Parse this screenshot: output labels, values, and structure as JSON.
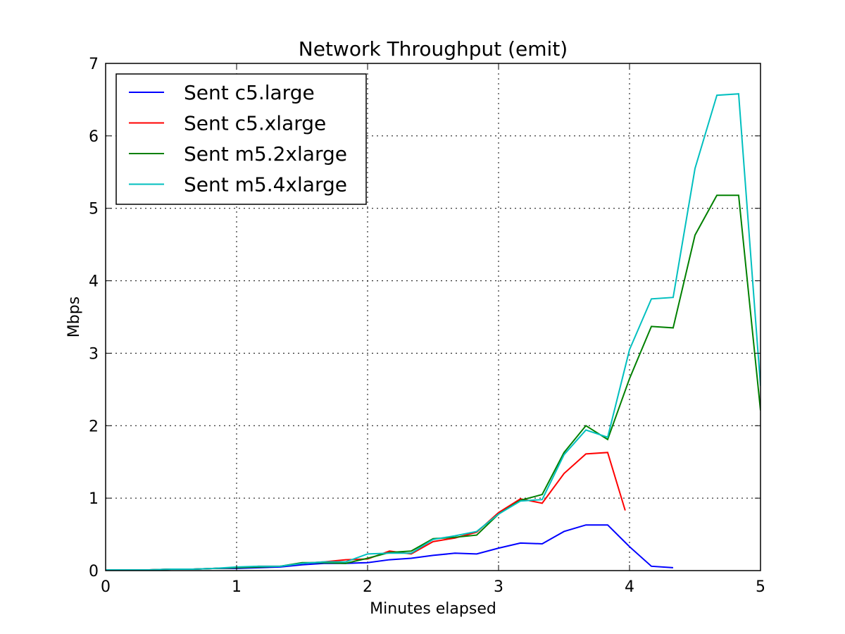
{
  "chart_data": {
    "type": "line",
    "title": "Network Throughput (emit)",
    "xlabel": "Minutes elapsed",
    "ylabel": "Mbps",
    "xlim": [
      0,
      5
    ],
    "ylim": [
      0,
      7
    ],
    "xticks": [
      0,
      1,
      2,
      3,
      4,
      5
    ],
    "yticks": [
      0,
      1,
      2,
      3,
      4,
      5,
      6,
      7
    ],
    "grid": true,
    "legend_position": "top-left",
    "series": [
      {
        "name": "Sent c5.large",
        "color": "#0000ff",
        "x": [
          0,
          0.167,
          0.333,
          0.5,
          0.667,
          0.833,
          1.0,
          1.167,
          1.333,
          1.5,
          1.667,
          1.833,
          2.0,
          2.167,
          2.333,
          2.5,
          2.667,
          2.833,
          3.0,
          3.167,
          3.333,
          3.5,
          3.667,
          3.833,
          4.0,
          4.167,
          4.333
        ],
        "y": [
          0.01,
          0.01,
          0.01,
          0.02,
          0.02,
          0.03,
          0.03,
          0.04,
          0.05,
          0.08,
          0.1,
          0.1,
          0.11,
          0.15,
          0.17,
          0.21,
          0.24,
          0.23,
          0.31,
          0.38,
          0.37,
          0.54,
          0.63,
          0.63,
          0.33,
          0.06,
          0.04
        ]
      },
      {
        "name": "Sent c5.xlarge",
        "color": "#ff0000",
        "x": [
          0,
          0.167,
          0.333,
          0.5,
          0.667,
          0.833,
          1.0,
          1.167,
          1.333,
          1.5,
          1.667,
          1.833,
          2.0,
          2.167,
          2.333,
          2.5,
          2.667,
          2.833,
          3.0,
          3.167,
          3.333,
          3.5,
          3.667,
          3.833,
          3.967
        ],
        "y": [
          0.01,
          0.01,
          0.01,
          0.02,
          0.02,
          0.03,
          0.04,
          0.06,
          0.06,
          0.1,
          0.12,
          0.15,
          0.16,
          0.27,
          0.23,
          0.4,
          0.45,
          0.53,
          0.8,
          0.99,
          0.93,
          1.34,
          1.61,
          1.63,
          0.83
        ]
      },
      {
        "name": "Sent m5.2xlarge",
        "color": "#008000",
        "x": [
          0,
          0.167,
          0.333,
          0.5,
          0.667,
          0.833,
          1.0,
          1.167,
          1.333,
          1.5,
          1.667,
          1.833,
          2.0,
          2.167,
          2.333,
          2.5,
          2.667,
          2.833,
          3.0,
          3.167,
          3.333,
          3.5,
          3.667,
          3.833,
          4.0,
          4.167,
          4.333,
          4.5,
          4.667,
          4.833,
          5.0
        ],
        "y": [
          0.01,
          0.01,
          0.01,
          0.02,
          0.02,
          0.03,
          0.04,
          0.05,
          0.06,
          0.11,
          0.11,
          0.1,
          0.17,
          0.25,
          0.27,
          0.44,
          0.46,
          0.49,
          0.78,
          0.97,
          1.05,
          1.63,
          2.0,
          1.81,
          2.65,
          3.37,
          3.35,
          4.63,
          5.18,
          5.18,
          2.21
        ]
      },
      {
        "name": "Sent m5.4xlarge",
        "color": "#00bfbf",
        "x": [
          0,
          0.167,
          0.333,
          0.5,
          0.667,
          0.833,
          1.0,
          1.167,
          1.333,
          1.5,
          1.667,
          1.833,
          2.0,
          2.167,
          2.333,
          2.5,
          2.667,
          2.833,
          3.0,
          3.167,
          3.333,
          3.5,
          3.667,
          3.833,
          4.0,
          4.167,
          4.333,
          4.5,
          4.667,
          4.833,
          5.0
        ],
        "y": [
          0.01,
          0.01,
          0.01,
          0.02,
          0.02,
          0.03,
          0.05,
          0.06,
          0.06,
          0.1,
          0.12,
          0.12,
          0.23,
          0.24,
          0.24,
          0.43,
          0.48,
          0.54,
          0.78,
          0.96,
          0.98,
          1.6,
          1.94,
          1.84,
          3.05,
          3.75,
          3.77,
          5.55,
          6.56,
          6.58,
          2.55
        ]
      }
    ]
  }
}
